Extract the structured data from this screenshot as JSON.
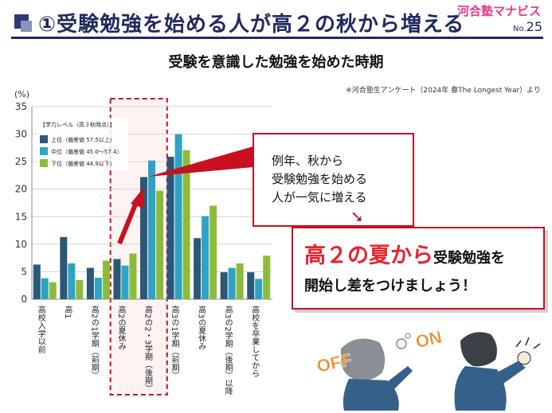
{
  "header": {
    "title": "①受験勉強を始める人が高２の秋から増える",
    "brand": "河合塾マナビス",
    "issue_prefix": "No.",
    "issue_number": "25"
  },
  "colors": {
    "navy": "#1f2a60",
    "accent_red": "#c8101e",
    "series_upper": "#2b5878",
    "series_middle": "#2ea3c4",
    "series_lower": "#8cbb3c"
  },
  "source_note": "※河合塾生アンケート（2024年 春The Longest Year）より",
  "chart_data": {
    "type": "bar",
    "title": "受験を意識した勉強を始めた時期",
    "ylabel": "(%)",
    "ylim": [
      0,
      35
    ],
    "yticks": [
      "0",
      "5",
      "10",
      "15",
      "20",
      "25",
      "30",
      "35"
    ],
    "grid": true,
    "legend_title": "【学力レベル（高３秋時点）】",
    "legend_position": "top-left",
    "categories": [
      "高校入学以前",
      "高1",
      "高2の1学期（前期）",
      "高2の夏休み",
      "高2の2・3学期（後期）",
      "高3の1学期（前期）",
      "高3の夏休み",
      "高3の2学期（後期）以降",
      "高校を卒業してから"
    ],
    "series": [
      {
        "name": "上位（偏差値 57.5以上）",
        "values": [
          6.3,
          11.3,
          5.7,
          7.3,
          22.2,
          25.9,
          11.1,
          4.9,
          4.9
        ]
      },
      {
        "name": "中位（偏差値 45.0～57.4）",
        "values": [
          3.8,
          6.5,
          3.9,
          6.1,
          25.2,
          30.0,
          15.1,
          5.7,
          3.7
        ]
      },
      {
        "name": "下位（偏差値 44.9以下）",
        "values": [
          3.1,
          3.5,
          7.0,
          8.3,
          19.7,
          27.1,
          17.0,
          6.5,
          7.9
        ]
      }
    ],
    "highlight_category": "高2の夏休み, 高2の2・3学期（後期）"
  },
  "callout": {
    "text": "例年、秋から\n受験勉強を始める\n人が一気に増える"
  },
  "cta": {
    "big": "高２の夏から",
    "mid": "受験勉強を",
    "line2": "開始し差をつけましょう！"
  },
  "illustrations": {
    "off_label": "OFF",
    "on_label": "ON"
  }
}
